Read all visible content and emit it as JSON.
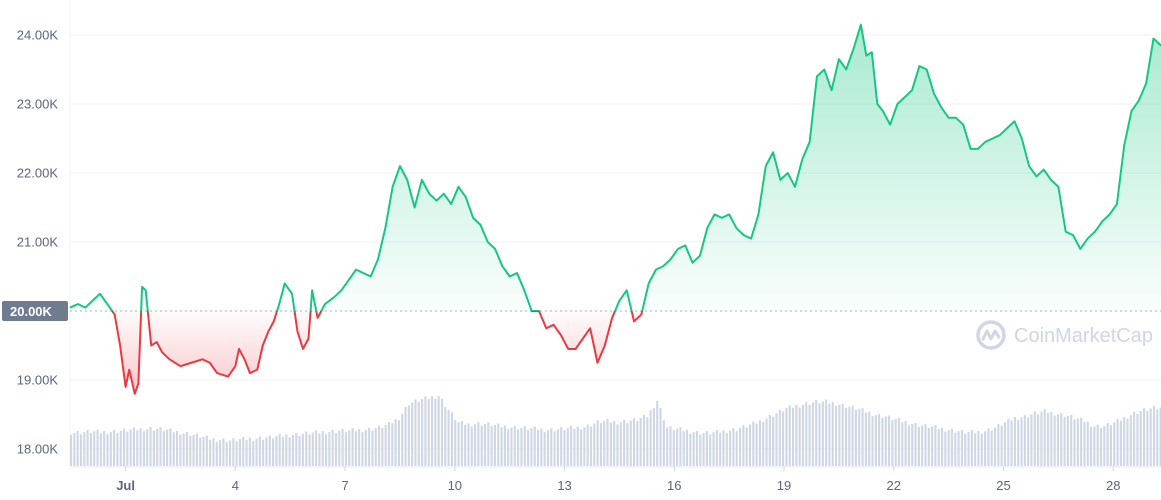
{
  "chart_data": {
    "type": "line",
    "title": "",
    "xlabel": "",
    "ylabel": "",
    "ylim": [
      17750,
      24300
    ],
    "y_ticks": [
      {
        "value": 18000,
        "label": "18.00K"
      },
      {
        "value": 19000,
        "label": "19.00K"
      },
      {
        "value": 21000,
        "label": "21.00K"
      },
      {
        "value": 22000,
        "label": "22.00K"
      },
      {
        "value": 23000,
        "label": "23.00K"
      },
      {
        "value": 24000,
        "label": "24.00K"
      }
    ],
    "reference_line": {
      "value": 20000,
      "label": "20.00K"
    },
    "x_range": [
      -0.52,
      28.95
    ],
    "x_ticks": [
      {
        "day": 1,
        "label": "Jul",
        "bold": true
      },
      {
        "day": 4,
        "label": "4"
      },
      {
        "day": 7,
        "label": "7"
      },
      {
        "day": 10,
        "label": "10"
      },
      {
        "day": 13,
        "label": "13"
      },
      {
        "day": 16,
        "label": "16"
      },
      {
        "day": 19,
        "label": "19"
      },
      {
        "day": 22,
        "label": "22"
      },
      {
        "day": 25,
        "label": "25"
      },
      {
        "day": 28,
        "label": "28"
      }
    ],
    "colors": {
      "above": "#16c784",
      "below": "#ea3943",
      "reference": "#a6b0c3",
      "volume": "#cfd6e4",
      "grid": "#eff2f5"
    },
    "grid": true,
    "series": [
      {
        "points": [
          [
            -0.52,
            20050
          ],
          [
            -0.3,
            20100
          ],
          [
            -0.1,
            20050
          ],
          [
            0.1,
            20150
          ],
          [
            0.3,
            20250
          ],
          [
            0.5,
            20100
          ],
          [
            0.7,
            19950
          ],
          [
            0.85,
            19500
          ],
          [
            1.0,
            18900
          ],
          [
            1.1,
            19150
          ],
          [
            1.25,
            18800
          ],
          [
            1.35,
            18950
          ],
          [
            1.45,
            20350
          ],
          [
            1.55,
            20300
          ],
          [
            1.7,
            19500
          ],
          [
            1.85,
            19550
          ],
          [
            2.0,
            19400
          ],
          [
            2.2,
            19300
          ],
          [
            2.5,
            19200
          ],
          [
            2.8,
            19250
          ],
          [
            3.1,
            19300
          ],
          [
            3.3,
            19250
          ],
          [
            3.5,
            19100
          ],
          [
            3.8,
            19050
          ],
          [
            4.0,
            19200
          ],
          [
            4.1,
            19450
          ],
          [
            4.25,
            19300
          ],
          [
            4.4,
            19100
          ],
          [
            4.6,
            19150
          ],
          [
            4.75,
            19500
          ],
          [
            4.9,
            19700
          ],
          [
            5.05,
            19850
          ],
          [
            5.2,
            20100
          ],
          [
            5.35,
            20400
          ],
          [
            5.55,
            20250
          ],
          [
            5.7,
            19700
          ],
          [
            5.85,
            19450
          ],
          [
            6.0,
            19600
          ],
          [
            6.1,
            20300
          ],
          [
            6.25,
            19900
          ],
          [
            6.45,
            20100
          ],
          [
            6.7,
            20200
          ],
          [
            6.9,
            20300
          ],
          [
            7.1,
            20450
          ],
          [
            7.3,
            20600
          ],
          [
            7.5,
            20550
          ],
          [
            7.7,
            20500
          ],
          [
            7.9,
            20750
          ],
          [
            8.1,
            21200
          ],
          [
            8.3,
            21800
          ],
          [
            8.5,
            22100
          ],
          [
            8.7,
            21900
          ],
          [
            8.9,
            21500
          ],
          [
            9.1,
            21900
          ],
          [
            9.3,
            21700
          ],
          [
            9.5,
            21600
          ],
          [
            9.7,
            21700
          ],
          [
            9.9,
            21550
          ],
          [
            10.1,
            21800
          ],
          [
            10.3,
            21650
          ],
          [
            10.5,
            21350
          ],
          [
            10.7,
            21250
          ],
          [
            10.9,
            21000
          ],
          [
            11.1,
            20900
          ],
          [
            11.3,
            20650
          ],
          [
            11.5,
            20500
          ],
          [
            11.7,
            20550
          ],
          [
            11.9,
            20300
          ],
          [
            12.1,
            20000
          ],
          [
            12.3,
            20000
          ],
          [
            12.5,
            19750
          ],
          [
            12.7,
            19800
          ],
          [
            12.9,
            19650
          ],
          [
            13.1,
            19450
          ],
          [
            13.3,
            19450
          ],
          [
            13.5,
            19600
          ],
          [
            13.7,
            19750
          ],
          [
            13.9,
            19250
          ],
          [
            14.1,
            19500
          ],
          [
            14.3,
            19900
          ],
          [
            14.5,
            20150
          ],
          [
            14.7,
            20300
          ],
          [
            14.9,
            19850
          ],
          [
            15.1,
            19950
          ],
          [
            15.3,
            20400
          ],
          [
            15.5,
            20600
          ],
          [
            15.7,
            20650
          ],
          [
            15.9,
            20750
          ],
          [
            16.1,
            20900
          ],
          [
            16.3,
            20950
          ],
          [
            16.5,
            20700
          ],
          [
            16.7,
            20800
          ],
          [
            16.9,
            21200
          ],
          [
            17.1,
            21400
          ],
          [
            17.3,
            21350
          ],
          [
            17.5,
            21400
          ],
          [
            17.7,
            21200
          ],
          [
            17.9,
            21100
          ],
          [
            18.1,
            21050
          ],
          [
            18.3,
            21400
          ],
          [
            18.5,
            22100
          ],
          [
            18.7,
            22300
          ],
          [
            18.9,
            21900
          ],
          [
            19.1,
            22000
          ],
          [
            19.3,
            21800
          ],
          [
            19.5,
            22200
          ],
          [
            19.7,
            22450
          ],
          [
            19.9,
            23400
          ],
          [
            20.1,
            23500
          ],
          [
            20.3,
            23200
          ],
          [
            20.5,
            23650
          ],
          [
            20.7,
            23500
          ],
          [
            20.9,
            23800
          ],
          [
            21.1,
            24150
          ],
          [
            21.25,
            23700
          ],
          [
            21.4,
            23750
          ],
          [
            21.55,
            23000
          ],
          [
            21.7,
            22900
          ],
          [
            21.9,
            22700
          ],
          [
            22.1,
            23000
          ],
          [
            22.3,
            23100
          ],
          [
            22.5,
            23200
          ],
          [
            22.7,
            23550
          ],
          [
            22.9,
            23500
          ],
          [
            23.1,
            23150
          ],
          [
            23.3,
            22950
          ],
          [
            23.5,
            22800
          ],
          [
            23.7,
            22800
          ],
          [
            23.9,
            22700
          ],
          [
            24.1,
            22350
          ],
          [
            24.3,
            22350
          ],
          [
            24.5,
            22450
          ],
          [
            24.7,
            22500
          ],
          [
            24.9,
            22550
          ],
          [
            25.1,
            22650
          ],
          [
            25.3,
            22750
          ],
          [
            25.5,
            22500
          ],
          [
            25.7,
            22100
          ],
          [
            25.9,
            21950
          ],
          [
            26.1,
            22050
          ],
          [
            26.3,
            21900
          ],
          [
            26.5,
            21800
          ],
          [
            26.7,
            21150
          ],
          [
            26.9,
            21100
          ],
          [
            27.1,
            20900
          ],
          [
            27.3,
            21050
          ],
          [
            27.5,
            21150
          ],
          [
            27.7,
            21300
          ],
          [
            27.9,
            21400
          ],
          [
            28.1,
            21550
          ],
          [
            28.3,
            22400
          ],
          [
            28.5,
            22900
          ],
          [
            28.7,
            23050
          ],
          [
            28.9,
            23300
          ],
          [
            29.1,
            23950
          ],
          [
            29.3,
            23850
          ],
          [
            29.5,
            23900
          ],
          [
            29.7,
            24000
          ],
          [
            29.9,
            24000
          ]
        ]
      }
    ],
    "volume": [
      0.42,
      0.42,
      0.43,
      0.42,
      0.43,
      0.44,
      0.45,
      0.46,
      0.47,
      0.46,
      0.44,
      0.42,
      0.4,
      0.37,
      0.34,
      0.33,
      0.32,
      0.33,
      0.34,
      0.35,
      0.36,
      0.37,
      0.39,
      0.4,
      0.41,
      0.42,
      0.43,
      0.44,
      0.44,
      0.45,
      0.46,
      0.48,
      0.52,
      0.6,
      0.78,
      0.82,
      0.85,
      0.88,
      0.7,
      0.54,
      0.52,
      0.53,
      0.52,
      0.5,
      0.49,
      0.48,
      0.47,
      0.46,
      0.45,
      0.46,
      0.47,
      0.48,
      0.5,
      0.55,
      0.56,
      0.55,
      0.56,
      0.58,
      0.62,
      0.82,
      0.48,
      0.46,
      0.44,
      0.42,
      0.41,
      0.42,
      0.44,
      0.46,
      0.5,
      0.54,
      0.6,
      0.66,
      0.72,
      0.75,
      0.78,
      0.8,
      0.8,
      0.78,
      0.75,
      0.72,
      0.68,
      0.64,
      0.62,
      0.58,
      0.55,
      0.52,
      0.5,
      0.48,
      0.46,
      0.44,
      0.42,
      0.42,
      0.44,
      0.48,
      0.54,
      0.6,
      0.62,
      0.66,
      0.68,
      0.66,
      0.64,
      0.6,
      0.56,
      0.5,
      0.5,
      0.54,
      0.6,
      0.66,
      0.7,
      0.72,
      0.72,
      0.7
    ],
    "volume_start": -0.52,
    "volume_end": 29.9
  },
  "watermark": {
    "brand": "CoinMarketCap",
    "icon": "coinmarketcap-logo-icon"
  }
}
